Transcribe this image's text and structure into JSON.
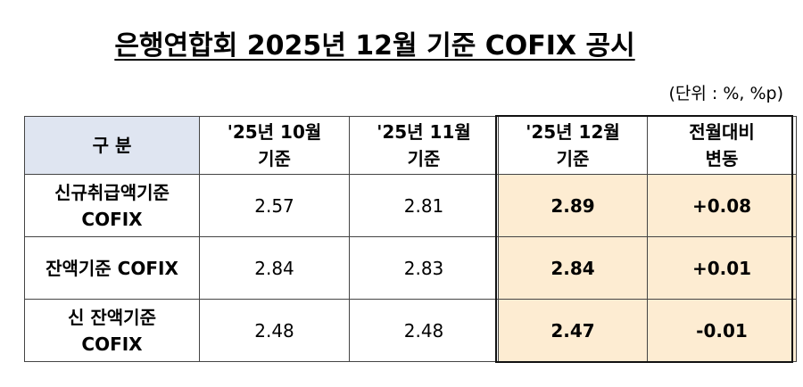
{
  "header": {
    "title": "은행연합회 2025년 12월 기준 COFIX 공시",
    "unit": "(단위 : %, %p)"
  },
  "table": {
    "columns": [
      "구 분",
      "'25년 10월\n기준",
      "'25년 11월\n기준",
      "'25년 12월\n기준",
      "전월대비\n변동"
    ],
    "rows": [
      [
        "신규취급액기준\nCOFIX",
        "2.57",
        "2.81",
        "2.89",
        "+0.08"
      ],
      [
        "잔액기준 COFIX",
        "2.84",
        "2.83",
        "2.84",
        "+0.01"
      ],
      [
        "신 잔액기준\nCOFIX",
        "2.48",
        "2.48",
        "2.47",
        "-0.01"
      ]
    ]
  }
}
